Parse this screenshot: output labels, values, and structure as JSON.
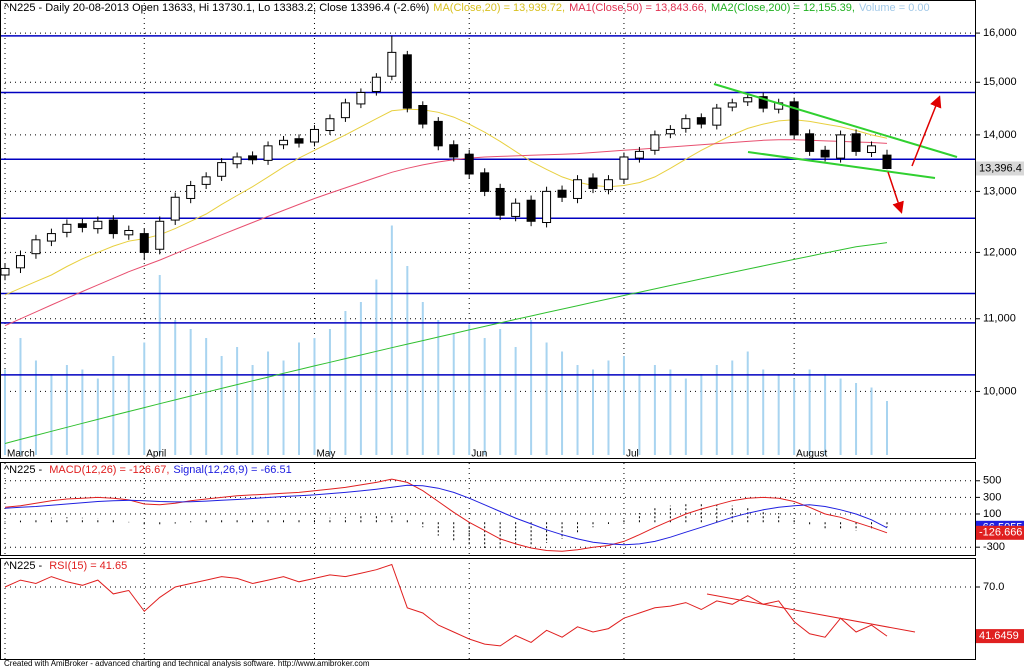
{
  "chart_data": [
    {
      "type": "candlestick",
      "title_parts": [
        {
          "text": "^N225 - Daily 20-08-2013 Open 13633, Hi 13730.1, Lo 13383.2, Close 13396.4 (-2.6%)",
          "color": "#000000"
        },
        {
          "text": "MA(Close,20) = 13,939.72,",
          "color": "#d8c020"
        },
        {
          "text": "MA1(Close,50) = 13,843.66,",
          "color": "#e03050"
        },
        {
          "text": "MA2(Close,200) = 12,155.39,",
          "color": "#20b020"
        },
        {
          "text": "Volume = 0.00",
          "color": "#a0c8e8"
        }
      ],
      "categories": [
        "March",
        null,
        null,
        null,
        null,
        null,
        null,
        null,
        null,
        "April",
        null,
        null,
        null,
        null,
        null,
        null,
        null,
        null,
        null,
        null,
        "May",
        null,
        null,
        null,
        null,
        null,
        null,
        null,
        null,
        null,
        "Jun",
        null,
        null,
        null,
        null,
        null,
        null,
        null,
        null,
        null,
        "Jul",
        null,
        null,
        null,
        null,
        null,
        null,
        null,
        null,
        null,
        null,
        "August",
        null,
        null,
        null,
        null,
        null,
        null
      ],
      "open": [
        11650,
        11760,
        11980,
        12180,
        12320,
        12460,
        12380,
        12520,
        12280,
        12300,
        12050,
        12520,
        12880,
        13120,
        13260,
        13480,
        13620,
        13540,
        13820,
        13930,
        13870,
        14080,
        14320,
        14580,
        14820,
        15120,
        15550,
        14550,
        14250,
        13820,
        13650,
        13320,
        13050,
        12580,
        12850,
        12480,
        13020,
        12880,
        13230,
        13030,
        13210,
        13580,
        13720,
        14020,
        14120,
        14320,
        14180,
        14520,
        14620,
        14720,
        14480,
        14620,
        14020,
        13720,
        13580,
        14020,
        13680,
        13633
      ],
      "high": [
        11830,
        12030,
        12280,
        12380,
        12530,
        12540,
        12580,
        12600,
        12430,
        12380,
        12580,
        12980,
        13180,
        13330,
        13580,
        13680,
        13700,
        13880,
        13980,
        14010,
        14180,
        14380,
        14680,
        14880,
        15180,
        15942,
        15630,
        14630,
        14330,
        13900,
        13730,
        13400,
        13130,
        12880,
        12930,
        13080,
        13100,
        13280,
        13310,
        13280,
        13680,
        13780,
        14080,
        14180,
        14380,
        14400,
        14580,
        14680,
        14780,
        14800,
        14680,
        14700,
        14100,
        13800,
        14080,
        14100,
        13880,
        13730.1
      ],
      "low": [
        11570,
        11680,
        11900,
        12100,
        12240,
        12320,
        12300,
        12220,
        12200,
        11880,
        11970,
        12440,
        12800,
        13040,
        13180,
        13400,
        13470,
        13460,
        13740,
        13770,
        13790,
        14000,
        14240,
        14500,
        14740,
        15040,
        14420,
        14120,
        13720,
        13520,
        13220,
        12920,
        12520,
        12500,
        12420,
        12400,
        12820,
        12800,
        12970,
        12950,
        13130,
        13500,
        13640,
        13940,
        14040,
        14120,
        14100,
        14440,
        14540,
        14420,
        14400,
        13920,
        13620,
        13520,
        13500,
        13620,
        13600,
        13383.2
      ],
      "close": [
        11750,
        11950,
        12200,
        12300,
        12450,
        12400,
        12500,
        12300,
        12350,
        12000,
        12500,
        12900,
        13100,
        13250,
        13500,
        13600,
        13550,
        13800,
        13900,
        13850,
        14100,
        14300,
        14600,
        14800,
        15100,
        15600,
        14500,
        14200,
        13800,
        13600,
        13300,
        13000,
        12600,
        12800,
        12500,
        13000,
        12900,
        13200,
        13050,
        13200,
        13600,
        13700,
        14000,
        14100,
        14300,
        14200,
        14500,
        14600,
        14700,
        14500,
        14600,
        14000,
        13700,
        13600,
        14000,
        13700,
        13800,
        13396.4
      ],
      "candle_colors": {
        "up": "#ffffff",
        "down": "#000000",
        "outline": "#000000"
      },
      "series": [
        {
          "name": "MA(Close,20)",
          "color": "#e8d040",
          "values": [
            11350,
            11450,
            11550,
            11650,
            11780,
            11900,
            12000,
            12100,
            12180,
            12220,
            12280,
            12380,
            12500,
            12620,
            12780,
            12930,
            13080,
            13250,
            13420,
            13580,
            13720,
            13860,
            14000,
            14150,
            14300,
            14450,
            14480,
            14470,
            14420,
            14330,
            14200,
            14050,
            13880,
            13700,
            13520,
            13380,
            13250,
            13160,
            13100,
            13080,
            13100,
            13150,
            13250,
            13400,
            13560,
            13720,
            13860,
            14000,
            14120,
            14200,
            14260,
            14280,
            14250,
            14200,
            14150,
            14080,
            14000,
            13939.72
          ]
        },
        {
          "name": "MA1(Close,50)",
          "color": "#e85070",
          "values": [
            10900,
            11000,
            11100,
            11200,
            11300,
            11400,
            11500,
            11600,
            11700,
            11790,
            11880,
            11980,
            12080,
            12180,
            12280,
            12380,
            12480,
            12580,
            12680,
            12780,
            12880,
            12970,
            13060,
            13150,
            13240,
            13330,
            13400,
            13460,
            13510,
            13550,
            13580,
            13600,
            13610,
            13620,
            13630,
            13640,
            13650,
            13660,
            13680,
            13700,
            13720,
            13740,
            13760,
            13780,
            13800,
            13820,
            13840,
            13860,
            13880,
            13900,
            13910,
            13910,
            13900,
            13890,
            13880,
            13870,
            13860,
            13843.66
          ]
        },
        {
          "name": "MA2(Close,200)",
          "color": "#30c030",
          "values": [
            9340,
            9390,
            9440,
            9490,
            9540,
            9590,
            9640,
            9690,
            9740,
            9790,
            9840,
            9890,
            9940,
            9990,
            10040,
            10090,
            10140,
            10190,
            10240,
            10290,
            10340,
            10390,
            10440,
            10490,
            10540,
            10590,
            10640,
            10690,
            10740,
            10790,
            10840,
            10890,
            10940,
            10990,
            11040,
            11090,
            11140,
            11190,
            11240,
            11290,
            11340,
            11390,
            11440,
            11490,
            11540,
            11590,
            11640,
            11690,
            11740,
            11790,
            11840,
            11890,
            11940,
            11990,
            12040,
            12090,
            12120,
            12155.39
          ]
        }
      ],
      "volume": {
        "color": "#a8d4f0",
        "ylim": [
          0,
          10
        ],
        "values": [
          1.9,
          2.6,
          2.1,
          1.8,
          2.0,
          1.9,
          1.7,
          2.2,
          1.8,
          2.5,
          4.0,
          3.0,
          2.8,
          2.6,
          2.2,
          2.4,
          2.0,
          2.3,
          2.1,
          2.5,
          2.6,
          2.8,
          3.2,
          3.4,
          3.9,
          5.1,
          4.2,
          3.4,
          3.0,
          2.7,
          2.9,
          2.6,
          2.8,
          2.4,
          3.0,
          2.5,
          2.3,
          2.0,
          1.9,
          2.1,
          2.2,
          1.8,
          2.0,
          1.9,
          1.7,
          1.8,
          2.0,
          2.1,
          2.3,
          1.9,
          1.8,
          1.7,
          1.9,
          1.8,
          1.7,
          1.6,
          1.5,
          1.2
        ]
      },
      "levels": {
        "color": "#0000c0",
        "values": [
          15940,
          14800,
          13560,
          12550,
          11370,
          10940,
          10220
        ]
      },
      "log_scale": true,
      "grid": true,
      "ylim": [
        9200,
        16600
      ],
      "yticks": [
        {
          "value": 10000,
          "label": "10,000"
        },
        {
          "value": 11000,
          "label": "11,000"
        },
        {
          "value": 12000,
          "label": "12,000"
        },
        {
          "value": 13000,
          "label": "13,000"
        },
        {
          "value": 14000,
          "label": "14,000"
        },
        {
          "value": 15000,
          "label": "15,000"
        },
        {
          "value": 16000,
          "label": "16,000"
        }
      ],
      "last_label": "13,396.4"
    },
    {
      "type": "macd",
      "title_parts": [
        {
          "text": "^N225 - ",
          "color": "#000000"
        },
        {
          "text": "MACD(12,26) = -126.67,",
          "color": "#e02020"
        },
        {
          "text": "Signal(12,26,9) = -66.51",
          "color": "#2020e0"
        }
      ],
      "series": [
        {
          "name": "MACD(12,26)",
          "color": "#e02020",
          "values": [
            180,
            200,
            230,
            260,
            280,
            290,
            300,
            290,
            270,
            220,
            210,
            230,
            260,
            280,
            300,
            320,
            330,
            340,
            350,
            360,
            380,
            400,
            420,
            450,
            480,
            520,
            480,
            380,
            250,
            120,
            0,
            -100,
            -200,
            -260,
            -310,
            -340,
            -350,
            -330,
            -300,
            -280,
            -230,
            -150,
            -60,
            20,
            100,
            160,
            210,
            260,
            290,
            300,
            290,
            250,
            180,
            100,
            60,
            0,
            -60,
            -126.67
          ]
        },
        {
          "name": "Signal(12,26,9)",
          "color": "#2020e0",
          "values": [
            170,
            180,
            190,
            205,
            220,
            235,
            250,
            260,
            265,
            260,
            250,
            245,
            248,
            255,
            265,
            275,
            287,
            298,
            310,
            320,
            330,
            345,
            360,
            378,
            398,
            422,
            445,
            440,
            410,
            360,
            290,
            210,
            130,
            50,
            -20,
            -90,
            -150,
            -200,
            -240,
            -260,
            -270,
            -260,
            -230,
            -180,
            -120,
            -60,
            0,
            60,
            110,
            150,
            180,
            200,
            210,
            190,
            150,
            100,
            30,
            -66.51
          ]
        }
      ],
      "histogram": {
        "color": "#000000",
        "values": [
          10,
          20,
          40,
          55,
          60,
          55,
          50,
          30,
          5,
          -40,
          -40,
          -15,
          12,
          25,
          35,
          45,
          43,
          42,
          40,
          40,
          50,
          55,
          60,
          72,
          82,
          98,
          35,
          -60,
          -160,
          -240,
          -290,
          -310,
          -330,
          -310,
          -290,
          -250,
          -200,
          -130,
          -60,
          -20,
          40,
          110,
          170,
          200,
          220,
          220,
          210,
          200,
          180,
          150,
          110,
          50,
          -30,
          -90,
          -90,
          -100,
          -90,
          -60.16
        ]
      },
      "value_labels": [
        {
          "text": "-66.5055",
          "value": -66.5055,
          "color": "#2020e0"
        },
        {
          "text": "-126.666",
          "value": -126.666,
          "color": "#e02020"
        }
      ],
      "grid": true,
      "ylim": [
        -370,
        690
      ],
      "yticks": [
        -300,
        100,
        300,
        500
      ]
    },
    {
      "type": "rsi",
      "title_parts": [
        {
          "text": "^N225 - ",
          "color": "#000000"
        },
        {
          "text": "RSI(15) = 41.65",
          "color": "#e02020"
        }
      ],
      "series": [
        {
          "name": "RSI(15)",
          "color": "#e02020",
          "values": [
            70,
            74,
            72,
            76,
            73,
            71,
            74,
            66,
            68,
            56,
            64,
            70,
            72,
            74,
            76,
            75,
            72,
            74,
            76,
            73,
            75,
            77,
            76,
            78,
            80,
            83,
            58,
            55,
            48,
            44,
            40,
            37,
            36,
            42,
            38,
            45,
            41,
            47,
            44,
            46,
            52,
            55,
            58,
            59,
            61,
            57,
            62,
            60,
            65,
            60,
            62,
            50,
            43,
            41,
            52,
            44,
            48,
            41.65
          ]
        }
      ],
      "value_labels": [
        {
          "text": "41.6459",
          "value": 41.6459,
          "color": "#e02020"
        }
      ],
      "grid": true,
      "ylim": [
        29,
        85.6
      ],
      "yticks": [
        {
          "value": 70,
          "label": "70.0"
        }
      ]
    }
  ],
  "footer": "Created with AmiBroker - advanced charting and technical analysis software. http://www.amibroker.com"
}
